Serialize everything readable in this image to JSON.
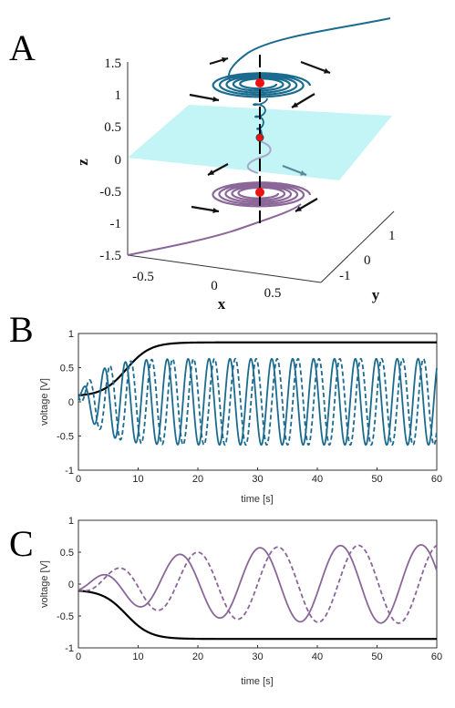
{
  "panel_labels": [
    "A",
    "B",
    "C"
  ],
  "colors": {
    "blue": "#1b6b8f",
    "purple": "#8a6798",
    "plane": "#b8f2f4",
    "fixed_point": "#ee1111",
    "nullcline": "#000000"
  },
  "chart_data": [
    {
      "type": "line",
      "panel": "A",
      "projection": "3d",
      "xlabel": "x",
      "ylabel": "y",
      "zlabel": "z",
      "xlim": [
        -0.8,
        0.8
      ],
      "ylim": [
        -1.5,
        1.5
      ],
      "zlim": [
        -1.5,
        1.5
      ],
      "x_ticks": [
        "-0.5",
        "0",
        "0.5"
      ],
      "y_ticks": [
        "-1",
        "0",
        "1"
      ],
      "z_ticks": [
        "1.5",
        "1",
        "0.5",
        "0",
        "-0.5",
        "-1",
        "-1.5"
      ],
      "plane_z": 0,
      "fixed_points_z": [
        1.2,
        0.35,
        -0.55
      ],
      "series": [
        {
          "color": "blue",
          "limit_cycle_z": 1.2,
          "radius": 0.6
        },
        {
          "color": "purple",
          "limit_cycle_z": -0.55,
          "radius": 0.6
        }
      ]
    },
    {
      "type": "line",
      "panel": "B",
      "xlabel": "time [s]",
      "ylabel": "voltage [V]",
      "xlim": [
        0,
        60
      ],
      "ylim": [
        -1,
        1
      ],
      "x_ticks": [
        "0",
        "10",
        "20",
        "30",
        "40",
        "50",
        "60"
      ],
      "y_ticks": [
        "1",
        "0.5",
        "0",
        "-0.5",
        "-1"
      ],
      "series": [
        {
          "style": "solid",
          "color": "nullcline",
          "kind": "sigmoid",
          "start": 0.08,
          "end": 0.87,
          "t_mid": 8
        },
        {
          "style": "solid",
          "color": "blue",
          "kind": "oscillation",
          "amplitude": 0.63,
          "period": 3.5
        },
        {
          "style": "dashed",
          "color": "blue",
          "kind": "oscillation",
          "amplitude": 0.63,
          "period": 3.5,
          "phase_lag": 0.9
        }
      ]
    },
    {
      "type": "line",
      "panel": "C",
      "xlabel": "time [s]",
      "ylabel": "voltage [V]",
      "xlim": [
        0,
        60
      ],
      "ylim": [
        -1,
        1
      ],
      "x_ticks": [
        "0",
        "10",
        "20",
        "30",
        "40",
        "50",
        "60"
      ],
      "y_ticks": [
        "1",
        "0.5",
        "0",
        "-0.5",
        "-1"
      ],
      "series": [
        {
          "style": "solid",
          "color": "nullcline",
          "kind": "sigmoid",
          "start": -0.09,
          "end": -0.86,
          "t_mid": 8
        },
        {
          "style": "solid",
          "color": "purple",
          "kind": "oscillation",
          "amplitude": 0.62,
          "period": 13.5
        },
        {
          "style": "dashed",
          "color": "purple",
          "kind": "oscillation",
          "amplitude": 0.62,
          "period": 13.5,
          "phase_lag": 3.0
        }
      ]
    }
  ]
}
